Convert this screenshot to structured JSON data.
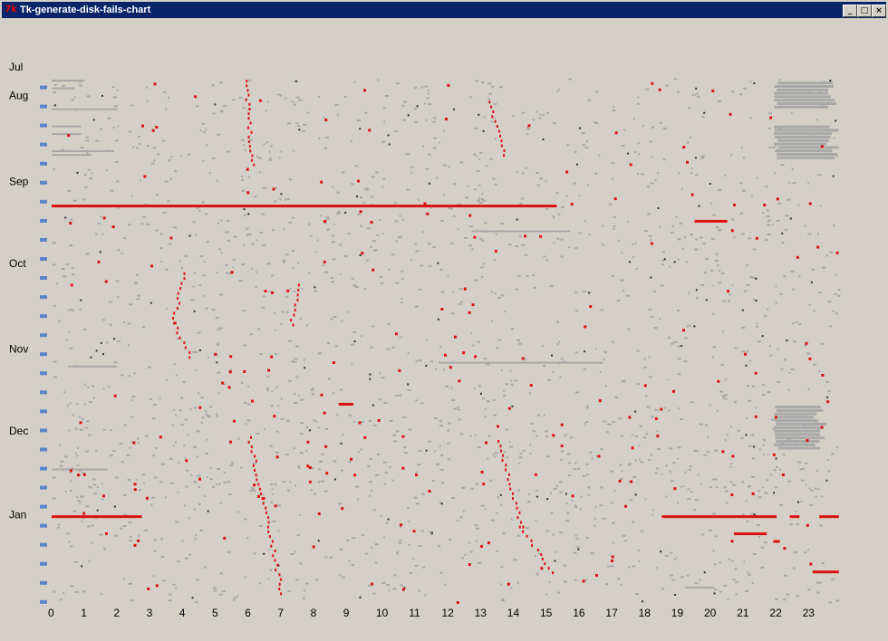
{
  "window": {
    "title": "Tk-generate-disk-fails-chart",
    "icon": "tk-icon"
  },
  "colors": {
    "background": "#d4d0c8",
    "titlebar": "#0a246a",
    "grey_event": "#a8a8a8",
    "dark_event": "#303030",
    "fail_event": "#dd1111",
    "week_marker": "#5b85c8"
  },
  "chart_data": {
    "type": "scatter",
    "title": "",
    "xlabel": "",
    "ylabel": "",
    "x_ticks": [
      "0",
      "1",
      "2",
      "3",
      "4",
      "5",
      "6",
      "7",
      "8",
      "9",
      "10",
      "11",
      "12",
      "13",
      "14",
      "15",
      "16",
      "17",
      "18",
      "19",
      "20",
      "21",
      "22",
      "23"
    ],
    "xlim": [
      0,
      24
    ],
    "y_month_labels": [
      {
        "label": "Jul",
        "week": 0
      },
      {
        "label": "Aug",
        "week": 1.5
      },
      {
        "label": "Sep",
        "week": 6
      },
      {
        "label": "Oct",
        "week": 10.3
      },
      {
        "label": "Nov",
        "week": 14.8
      },
      {
        "label": "Dec",
        "week": 19.1
      },
      {
        "label": "Jan",
        "week": 23.5
      }
    ],
    "weeks": 28,
    "fail_segments": [
      {
        "row": 6.7,
        "x0": 0,
        "x1": 15.4
      },
      {
        "row": 23.0,
        "x0": 0,
        "x1": 2.75
      },
      {
        "row": 7.5,
        "x0": 19.6,
        "x1": 20.6
      },
      {
        "row": 17.1,
        "x0": 8.75,
        "x1": 9.2
      },
      {
        "row": 23.0,
        "x0": 18.6,
        "x1": 22.1
      },
      {
        "row": 23.0,
        "x0": 22.5,
        "x1": 22.8
      },
      {
        "row": 23.0,
        "x0": 23.4,
        "x1": 24
      },
      {
        "row": 23.9,
        "x0": 20.8,
        "x1": 21.8
      },
      {
        "row": 24.3,
        "x0": 22.0,
        "x1": 22.2
      },
      {
        "row": 25.9,
        "x0": 23.2,
        "x1": 24
      }
    ],
    "grey_segments": [
      {
        "row": 0.1,
        "x0": 0,
        "x1": 1
      },
      {
        "row": 0.5,
        "x0": 0,
        "x1": 0.7
      },
      {
        "row": 1.6,
        "x0": 0,
        "x1": 2
      },
      {
        "row": 2.5,
        "x0": 0,
        "x1": 0.9
      },
      {
        "row": 2.9,
        "x0": 0,
        "x1": 0.9
      },
      {
        "row": 3.8,
        "x0": 0,
        "x1": 1.9
      },
      {
        "row": 4.0,
        "x0": 0,
        "x1": 1.2
      },
      {
        "row": 14.9,
        "x0": 11.8,
        "x1": 16.8
      },
      {
        "row": 8.0,
        "x0": 12.8,
        "x1": 15.8
      },
      {
        "row": 26.7,
        "x0": 19.3,
        "x1": 20.2
      },
      {
        "row": 20.5,
        "x0": 0,
        "x1": 1.7
      },
      {
        "row": 15.1,
        "x0": 0.5,
        "x1": 2
      }
    ],
    "grey_blocks": [
      {
        "row0": 0.2,
        "row1": 1.6,
        "x0": 22.0,
        "x1": 24
      },
      {
        "row0": 2.5,
        "row1": 4.3,
        "x0": 22.0,
        "x1": 24
      },
      {
        "row0": 17.2,
        "row1": 19.4,
        "x0": 22.0,
        "x1": 23.6
      }
    ],
    "fail_tracks": [
      {
        "x0": 4.0,
        "y0": 10.2,
        "x1": 3.7,
        "y1": 12.8
      },
      {
        "x0": 3.7,
        "y0": 12.8,
        "x1": 4.2,
        "y1": 14.6
      },
      {
        "x0": 6.0,
        "y0": 18.8,
        "x1": 6.4,
        "y1": 22.0
      },
      {
        "x0": 6.4,
        "y0": 22.0,
        "x1": 7.0,
        "y1": 27.0
      },
      {
        "x0": 13.6,
        "y0": 19.0,
        "x1": 14.3,
        "y1": 23.5
      },
      {
        "x0": 14.3,
        "y0": 23.5,
        "x1": 15.2,
        "y1": 25.9
      },
      {
        "x0": 5.9,
        "y0": 0.1,
        "x1": 6.1,
        "y1": 4.5
      },
      {
        "x0": 13.3,
        "y0": 1.2,
        "x1": 13.8,
        "y1": 4.0
      },
      {
        "x0": 7.5,
        "y0": 10.8,
        "x1": 7.3,
        "y1": 12.9
      }
    ],
    "noise": {
      "seed": 7,
      "grey_dots": 2400,
      "dark_dots": 120,
      "fail_dots": 360
    }
  }
}
